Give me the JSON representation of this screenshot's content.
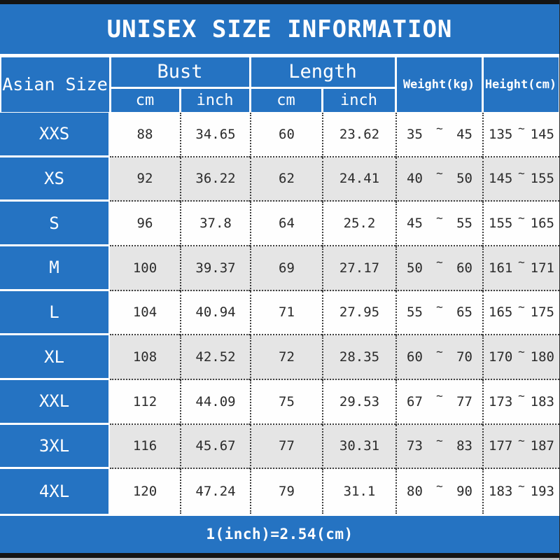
{
  "title": "UNISEX SIZE INFORMATION",
  "header": {
    "size_col": "Asian Size",
    "groups": [
      {
        "label": "Bust",
        "subs": [
          "cm",
          "inch"
        ]
      },
      {
        "label": "Length",
        "subs": [
          "cm",
          "inch"
        ]
      }
    ],
    "weight_col": "Weight(kg)",
    "height_col": "Height(cm)"
  },
  "tilde": "~",
  "rows": [
    {
      "size": "XXS",
      "bust_cm": "88",
      "bust_inch": "34.65",
      "len_cm": "60",
      "len_inch": "23.62",
      "weight_min": "35",
      "weight_max": "45",
      "height_min": "135",
      "height_max": "145"
    },
    {
      "size": "XS",
      "bust_cm": "92",
      "bust_inch": "36.22",
      "len_cm": "62",
      "len_inch": "24.41",
      "weight_min": "40",
      "weight_max": "50",
      "height_min": "145",
      "height_max": "155"
    },
    {
      "size": "S",
      "bust_cm": "96",
      "bust_inch": "37.8",
      "len_cm": "64",
      "len_inch": "25.2",
      "weight_min": "45",
      "weight_max": "55",
      "height_min": "155",
      "height_max": "165"
    },
    {
      "size": "M",
      "bust_cm": "100",
      "bust_inch": "39.37",
      "len_cm": "69",
      "len_inch": "27.17",
      "weight_min": "50",
      "weight_max": "60",
      "height_min": "161",
      "height_max": "171"
    },
    {
      "size": "L",
      "bust_cm": "104",
      "bust_inch": "40.94",
      "len_cm": "71",
      "len_inch": "27.95",
      "weight_min": "55",
      "weight_max": "65",
      "height_min": "165",
      "height_max": "175"
    },
    {
      "size": "XL",
      "bust_cm": "108",
      "bust_inch": "42.52",
      "len_cm": "72",
      "len_inch": "28.35",
      "weight_min": "60",
      "weight_max": "70",
      "height_min": "170",
      "height_max": "180"
    },
    {
      "size": "XXL",
      "bust_cm": "112",
      "bust_inch": "44.09",
      "len_cm": "75",
      "len_inch": "29.53",
      "weight_min": "67",
      "weight_max": "77",
      "height_min": "173",
      "height_max": "183"
    },
    {
      "size": "3XL",
      "bust_cm": "116",
      "bust_inch": "45.67",
      "len_cm": "77",
      "len_inch": "30.31",
      "weight_min": "73",
      "weight_max": "83",
      "height_min": "177",
      "height_max": "187"
    },
    {
      "size": "4XL",
      "bust_cm": "120",
      "bust_inch": "47.24",
      "len_cm": "79",
      "len_inch": "31.1",
      "weight_min": "80",
      "weight_max": "90",
      "height_min": "183",
      "height_max": "193"
    }
  ],
  "footer": "1(inch)=2.54(cm)",
  "colors": {
    "accent_blue": "#2573c2",
    "alt_row_gray": "#e5e5e5",
    "bar_black": "#141414",
    "text_dark": "#2b2b2b"
  }
}
